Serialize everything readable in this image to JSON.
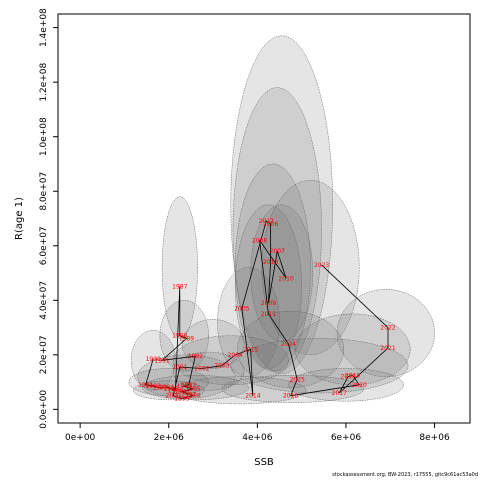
{
  "footer": "stockassessment.org, BW-2023, r17555, gitc9c61ac53a0d",
  "chart_data": {
    "type": "scatter",
    "title": "",
    "xlabel": "SSB",
    "ylabel": "R(age 1)",
    "xlim": [
      -500000,
      8800000
    ],
    "ylim": [
      -5000000,
      145000000
    ],
    "x_ticks": [
      0,
      2000000,
      4000000,
      6000000,
      8000000
    ],
    "x_tick_labels": [
      "0e+00",
      "2e+06",
      "4e+06",
      "6e+06",
      "8e+06"
    ],
    "y_ticks": [
      0,
      20000000,
      40000000,
      60000000,
      80000000,
      100000000,
      120000000,
      140000000
    ],
    "y_tick_labels": [
      "0.0e+00",
      "2.0e+07",
      "4.0e+07",
      "6.0e+07",
      "8.0e+07",
      "1.0e+08",
      "1.2e+08",
      "1.4e+08"
    ],
    "grid": false,
    "line_color": "#000000",
    "label_color": "#ff0000",
    "ellipse_fill": "rgba(110,110,110,0.18)",
    "ellipse_stroke": "#555555",
    "points": [
      {
        "year": "1981",
        "x": 1480000,
        "y": 9000000
      },
      {
        "year": "1982",
        "x": 1650000,
        "y": 8500000
      },
      {
        "year": "1983",
        "x": 1800000,
        "y": 8000000
      },
      {
        "year": "1984",
        "x": 1950000,
        "y": 8200000
      },
      {
        "year": "1985",
        "x": 2050000,
        "y": 7500000
      },
      {
        "year": "1986",
        "x": 2150000,
        "y": 7000000
      },
      {
        "year": "1987",
        "x": 2250000,
        "y": 45000000
      },
      {
        "year": "1988",
        "x": 2250000,
        "y": 27000000
      },
      {
        "year": "1989",
        "x": 2400000,
        "y": 26000000
      },
      {
        "year": "1990",
        "x": 1650000,
        "y": 18500000
      },
      {
        "year": "1991",
        "x": 1850000,
        "y": 18000000
      },
      {
        "year": "1992",
        "x": 2600000,
        "y": 19500000
      },
      {
        "year": "1993",
        "x": 2450000,
        "y": 9000000
      },
      {
        "year": "1994",
        "x": 2350000,
        "y": 8500000
      },
      {
        "year": "1995",
        "x": 2550000,
        "y": 7500000
      },
      {
        "year": "1996",
        "x": 2300000,
        "y": 6500000
      },
      {
        "year": "1997",
        "x": 2450000,
        "y": 5500000
      },
      {
        "year": "1998",
        "x": 2550000,
        "y": 5000000
      },
      {
        "year": "1999",
        "x": 2300000,
        "y": 4000000
      },
      {
        "year": "2000",
        "x": 2100000,
        "y": 5000000
      },
      {
        "year": "2001",
        "x": 2250000,
        "y": 15500000
      },
      {
        "year": "2002",
        "x": 2750000,
        "y": 15000000
      },
      {
        "year": "2003",
        "x": 3200000,
        "y": 16000000
      },
      {
        "year": "2004",
        "x": 3500000,
        "y": 20000000
      },
      {
        "year": "2005",
        "x": 3650000,
        "y": 37000000
      },
      {
        "year": "2006",
        "x": 4300000,
        "y": 68000000
      },
      {
        "year": "2007",
        "x": 4450000,
        "y": 58000000
      },
      {
        "year": "2008",
        "x": 4050000,
        "y": 62000000
      },
      {
        "year": "2009",
        "x": 4250000,
        "y": 39000000
      },
      {
        "year": "2010",
        "x": 4650000,
        "y": 48000000
      },
      {
        "year": "2011",
        "x": 4250000,
        "y": 35000000
      },
      {
        "year": "2012",
        "x": 4200000,
        "y": 69000000
      },
      {
        "year": "2013",
        "x": 4300000,
        "y": 54000000
      },
      {
        "year": "2014",
        "x": 3900000,
        "y": 5000000
      },
      {
        "year": "2015",
        "x": 3850000,
        "y": 22000000
      },
      {
        "year": "2016",
        "x": 4750000,
        "y": 5000000
      },
      {
        "year": "2017",
        "x": 5850000,
        "y": 6000000
      },
      {
        "year": "2018",
        "x": 6050000,
        "y": 12000000
      },
      {
        "year": "2019",
        "x": 6150000,
        "y": 12500000
      },
      {
        "year": "2020",
        "x": 6300000,
        "y": 9000000
      },
      {
        "year": "2021",
        "x": 6950000,
        "y": 22500000
      },
      {
        "year": "2022",
        "x": 6950000,
        "y": 30000000
      },
      {
        "year": "2023",
        "x": 5450000,
        "y": 53000000
      },
      {
        "year": "2024",
        "x": 4700000,
        "y": 24000000
      },
      {
        "year": "2025",
        "x": 4900000,
        "y": 11000000
      }
    ],
    "path_order": [
      "1981",
      "1990",
      "1981",
      "1982",
      "1983",
      "1984",
      "1985",
      "1986",
      "1987",
      "1988",
      "1989",
      "1991",
      "1992",
      "1993",
      "1994",
      "1995",
      "1996",
      "1997",
      "1998",
      "1999",
      "2000",
      "2001",
      "2002",
      "2003",
      "2004",
      "2015",
      "2014",
      "2005",
      "2012",
      "2006",
      "2013",
      "2009",
      "2007",
      "2010",
      "2008",
      "2011",
      "2024",
      "2025",
      "2016",
      "2020",
      "2019",
      "2018",
      "2017",
      "2021",
      "2022",
      "2023"
    ],
    "ellipses": [
      {
        "cx": 4550000,
        "cy": 75000000,
        "rx": 1150000,
        "ry": 62000000
      },
      {
        "cx": 4450000,
        "cy": 66000000,
        "rx": 1000000,
        "ry": 52000000
      },
      {
        "cx": 4350000,
        "cy": 52000000,
        "rx": 850000,
        "ry": 38000000
      },
      {
        "cx": 4250000,
        "cy": 45000000,
        "rx": 750000,
        "ry": 30000000
      },
      {
        "cx": 4550000,
        "cy": 50000000,
        "rx": 700000,
        "ry": 25000000
      },
      {
        "cx": 5200000,
        "cy": 52000000,
        "rx": 1100000,
        "ry": 32000000
      },
      {
        "cx": 2250000,
        "cy": 52000000,
        "rx": 400000,
        "ry": 26000000
      },
      {
        "cx": 2350000,
        "cy": 27000000,
        "rx": 550000,
        "ry": 13000000
      },
      {
        "cx": 1650000,
        "cy": 18000000,
        "rx": 500000,
        "ry": 11000000
      },
      {
        "cx": 3800000,
        "cy": 32000000,
        "rx": 700000,
        "ry": 20000000
      },
      {
        "cx": 6900000,
        "cy": 28000000,
        "rx": 1100000,
        "ry": 16000000
      },
      {
        "cx": 6150000,
        "cy": 22000000,
        "rx": 1300000,
        "ry": 13000000
      },
      {
        "cx": 5400000,
        "cy": 16000000,
        "rx": 2000000,
        "ry": 10000000
      },
      {
        "cx": 4750000,
        "cy": 22000000,
        "rx": 1200000,
        "ry": 14000000
      },
      {
        "cx": 3400000,
        "cy": 18000000,
        "rx": 1300000,
        "ry": 9000000
      },
      {
        "cx": 2400000,
        "cy": 12000000,
        "rx": 1100000,
        "ry": 8000000
      },
      {
        "cx": 2000000,
        "cy": 10000000,
        "rx": 900000,
        "ry": 5000000
      },
      {
        "cx": 2600000,
        "cy": 8000000,
        "rx": 1200000,
        "ry": 4500000
      },
      {
        "cx": 3600000,
        "cy": 7000000,
        "rx": 1500000,
        "ry": 5000000
      },
      {
        "cx": 4800000,
        "cy": 7500000,
        "rx": 1600000,
        "ry": 5000000
      },
      {
        "cx": 6000000,
        "cy": 9000000,
        "rx": 1300000,
        "ry": 6000000
      },
      {
        "cx": 2000000,
        "cy": 7000000,
        "rx": 800000,
        "ry": 3500000
      },
      {
        "cx": 3000000,
        "cy": 24000000,
        "rx": 700000,
        "ry": 9000000
      },
      {
        "cx": 2900000,
        "cy": 14000000,
        "rx": 800000,
        "ry": 7000000
      }
    ]
  }
}
